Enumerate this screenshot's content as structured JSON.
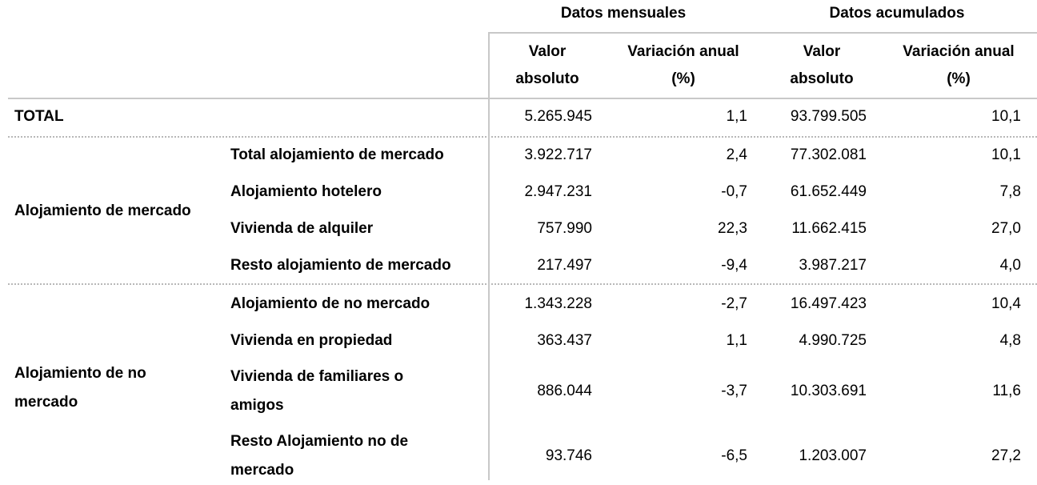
{
  "header": {
    "group_monthly": "Datos mensuales",
    "group_cumulative": "Datos acumulados",
    "col_abs_line1": "Valor",
    "col_abs_line2": "absoluto",
    "col_var_line1": "Variación anual",
    "col_var_line2": "(%)"
  },
  "total": {
    "label": "TOTAL",
    "values": [
      "5.265.945",
      "1,1",
      "93.799.505",
      "10,1"
    ]
  },
  "groups": [
    {
      "label": "Alojamiento de mercado",
      "rows": [
        {
          "label": "Total alojamiento de mercado",
          "values": [
            "3.922.717",
            "2,4",
            "77.302.081",
            "10,1"
          ]
        },
        {
          "label": "Alojamiento hotelero",
          "values": [
            "2.947.231",
            "-0,7",
            "61.652.449",
            "7,8"
          ]
        },
        {
          "label": "Vivienda de alquiler",
          "values": [
            "757.990",
            "22,3",
            "11.662.415",
            "27,0"
          ]
        },
        {
          "label": "Resto alojamiento de mercado",
          "values": [
            "217.497",
            "-9,4",
            "3.987.217",
            "4,0"
          ]
        }
      ]
    },
    {
      "label_line1": "Alojamiento de no",
      "label_line2": "mercado",
      "rows": [
        {
          "label": "Alojamiento de no mercado",
          "values": [
            "1.343.228",
            "-2,7",
            "16.497.423",
            "10,4"
          ]
        },
        {
          "label": "Vivienda en propiedad",
          "values": [
            "363.437",
            "1,1",
            "4.990.725",
            "4,8"
          ]
        },
        {
          "label_line1": "Vivienda de familiares o",
          "label_line2": "amigos",
          "values": [
            "886.044",
            "-3,7",
            "10.303.691",
            "11,6"
          ]
        },
        {
          "label_line1": "Resto Alojamiento no de",
          "label_line2": "mercado",
          "values": [
            "93.746",
            "-6,5",
            "1.203.007",
            "27,2"
          ]
        }
      ]
    }
  ]
}
